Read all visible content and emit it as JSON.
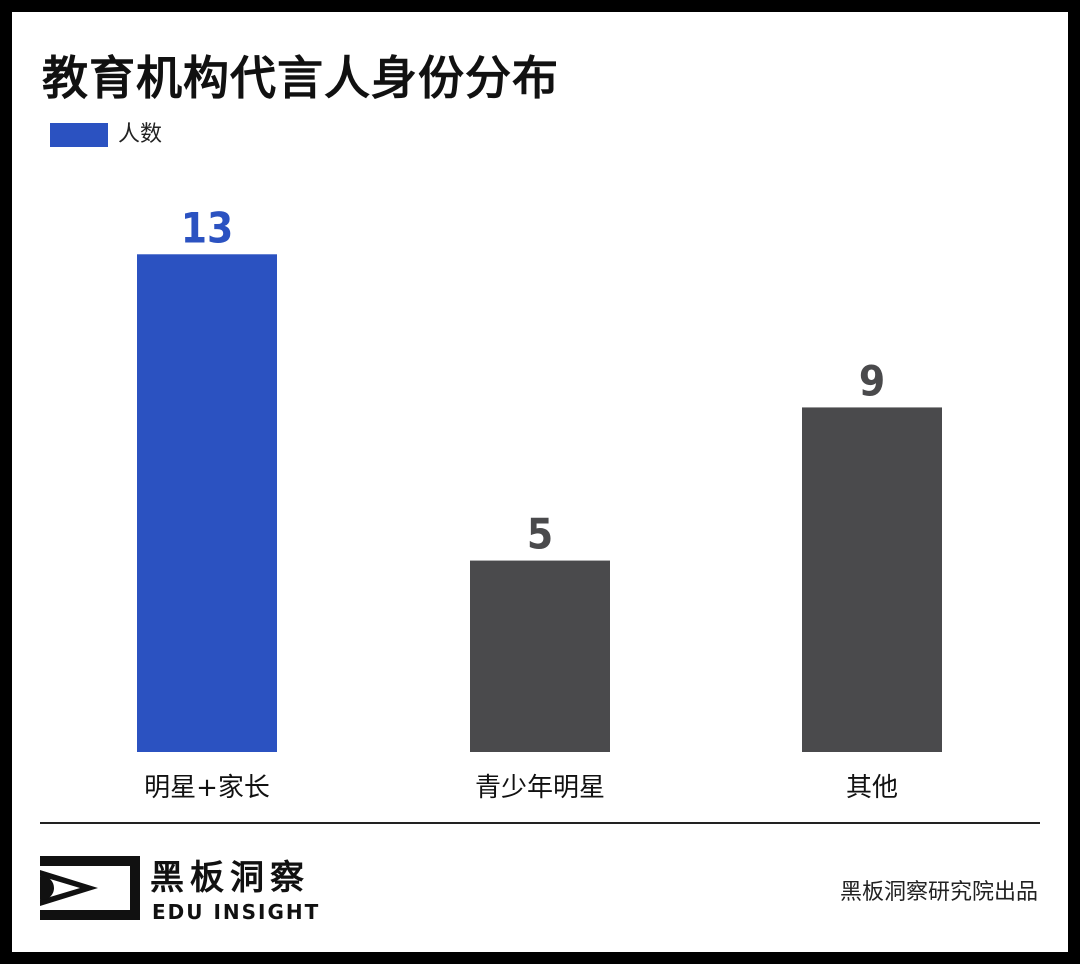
{
  "page": {
    "title": "教育机构代言人身份分布"
  },
  "legend": {
    "label": "人数",
    "color": "#2b52c1"
  },
  "chart_data": {
    "type": "bar",
    "categories": [
      "明星+家长",
      "青少年明星",
      "其他"
    ],
    "series": [
      {
        "name": "人数",
        "values": [
          13,
          5,
          9
        ],
        "colors": [
          "#2b52c1",
          "#4a4a4c",
          "#4a4a4c"
        ]
      }
    ],
    "label_colors": [
      "#2b52c1",
      "#4a4a4c",
      "#4a4a4c"
    ],
    "title": "教育机构代言人身份分布",
    "xlabel": "",
    "ylabel": "",
    "ylim": [
      0,
      14
    ],
    "grid": false,
    "legend_position": "top-left"
  },
  "footer": {
    "brand_cn": "黑板洞察",
    "brand_en": "EDU INSIGHT",
    "credit": "黑板洞察研究院出品"
  }
}
